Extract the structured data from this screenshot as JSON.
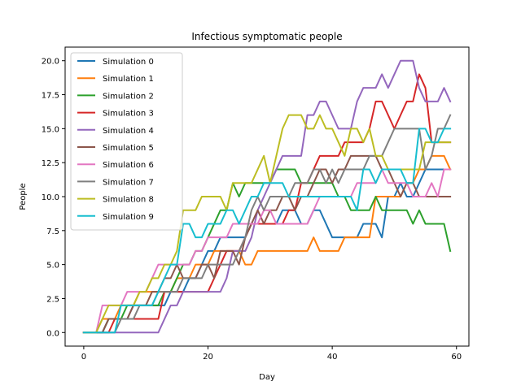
{
  "chart_data": {
    "type": "line",
    "title": "Infectious symptomatic people",
    "xlabel": "Day",
    "ylabel": "People",
    "xlim": [
      -3,
      62
    ],
    "ylim": [
      -1,
      21
    ],
    "xticks": [
      0,
      20,
      40,
      60
    ],
    "xtick_labels": [
      "0",
      "20",
      "40",
      "60"
    ],
    "yticks": [
      0,
      2.5,
      5,
      7.5,
      10,
      12.5,
      15,
      17.5,
      20
    ],
    "ytick_labels": [
      "0.0",
      "2.5",
      "5.0",
      "7.5",
      "10.0",
      "12.5",
      "15.0",
      "17.5",
      "20.0"
    ],
    "grid": false,
    "legend_position": "upper-left",
    "x": [
      0,
      1,
      2,
      3,
      4,
      5,
      6,
      7,
      8,
      9,
      10,
      11,
      12,
      13,
      14,
      15,
      16,
      17,
      18,
      19,
      20,
      21,
      22,
      23,
      24,
      25,
      26,
      27,
      28,
      29,
      30,
      31,
      32,
      33,
      34,
      35,
      36,
      37,
      38,
      39,
      40,
      41,
      42,
      43,
      44,
      45,
      46,
      47,
      48,
      49,
      50,
      51,
      52,
      53,
      54,
      55,
      56,
      57,
      58,
      59
    ],
    "series": [
      {
        "name": "Simulation 0",
        "color": "#1f77b4",
        "values": [
          0,
          0,
          0,
          0,
          1,
          1,
          1,
          1,
          2,
          2,
          2,
          2,
          2,
          2,
          3,
          3,
          3,
          4,
          4,
          5,
          6,
          6,
          7,
          7,
          7,
          7,
          7,
          8,
          8,
          8,
          8,
          8,
          9,
          9,
          9,
          8,
          8,
          9,
          9,
          8,
          7,
          7,
          7,
          7,
          7,
          8,
          8,
          8,
          7,
          10,
          10,
          11,
          10,
          10,
          11,
          12,
          12,
          12,
          12,
          12
        ]
      },
      {
        "name": "Simulation 1",
        "color": "#ff7f0e",
        "values": [
          0,
          0,
          0,
          1,
          1,
          1,
          2,
          2,
          2,
          3,
          3,
          3,
          3,
          3,
          3,
          4,
          4,
          4,
          5,
          5,
          5,
          6,
          6,
          6,
          6,
          6,
          5,
          5,
          6,
          6,
          6,
          6,
          6,
          6,
          6,
          6,
          6,
          7,
          6,
          6,
          6,
          6,
          7,
          7,
          7,
          7,
          7,
          10,
          10,
          10,
          10,
          10,
          11,
          11,
          12,
          12,
          13,
          13,
          13,
          12
        ]
      },
      {
        "name": "Simulation 2",
        "color": "#2ca02c",
        "values": [
          0,
          0,
          0,
          0,
          1,
          1,
          1,
          2,
          2,
          2,
          2,
          2,
          2,
          3,
          3,
          4,
          5,
          5,
          6,
          6,
          7,
          8,
          9,
          9,
          11,
          10,
          11,
          11,
          11,
          11,
          11,
          12,
          12,
          12,
          12,
          11,
          11,
          11,
          11,
          11,
          11,
          10,
          10,
          9,
          9,
          9,
          9,
          10,
          9,
          9,
          9,
          9,
          9,
          8,
          9,
          8,
          8,
          8,
          8,
          6
        ]
      },
      {
        "name": "Simulation 3",
        "color": "#d62728",
        "values": [
          0,
          0,
          0,
          0,
          0,
          1,
          1,
          1,
          1,
          1,
          1,
          1,
          1,
          3,
          3,
          3,
          3,
          3,
          3,
          3,
          3,
          4,
          5,
          6,
          6,
          6,
          7,
          8,
          8,
          8,
          8,
          8,
          8,
          9,
          9,
          11,
          11,
          12,
          13,
          13,
          13,
          13,
          14,
          14,
          14,
          14,
          15,
          17,
          17,
          16,
          15,
          16,
          17,
          17,
          19,
          18,
          14,
          14,
          14,
          14
        ]
      },
      {
        "name": "Simulation 4",
        "color": "#9467bd",
        "values": [
          0,
          0,
          0,
          0,
          0,
          0,
          0,
          0,
          0,
          0,
          0,
          0,
          0,
          1,
          2,
          2,
          3,
          3,
          3,
          3,
          3,
          3,
          3,
          4,
          6,
          6,
          6,
          7,
          9,
          10,
          11,
          12,
          13,
          13,
          13,
          13,
          16,
          16,
          17,
          17,
          16,
          15,
          15,
          15,
          17,
          18,
          18,
          18,
          19,
          18,
          19,
          20,
          20,
          20,
          18,
          17,
          17,
          17,
          18,
          17
        ]
      },
      {
        "name": "Simulation 5",
        "color": "#8c564b",
        "values": [
          0,
          0,
          0,
          0,
          1,
          1,
          1,
          1,
          2,
          2,
          2,
          3,
          3,
          4,
          4,
          5,
          4,
          4,
          4,
          5,
          5,
          4,
          6,
          6,
          6,
          5,
          7,
          8,
          9,
          8,
          9,
          9,
          10,
          10,
          9,
          10,
          10,
          11,
          12,
          12,
          11,
          12,
          12,
          13,
          13,
          13,
          13,
          13,
          12,
          12,
          11,
          10,
          11,
          11,
          10,
          10,
          10,
          10,
          10,
          10
        ]
      },
      {
        "name": "Simulation 6",
        "color": "#e377c2",
        "values": [
          0,
          0,
          0,
          2,
          2,
          2,
          2,
          3,
          3,
          3,
          3,
          4,
          5,
          5,
          5,
          5,
          5,
          5,
          6,
          6,
          7,
          7,
          7,
          7,
          8,
          8,
          8,
          8,
          8,
          9,
          9,
          8,
          8,
          8,
          8,
          8,
          8,
          9,
          10,
          10,
          10,
          10,
          10,
          10,
          11,
          11,
          11,
          11,
          12,
          11,
          11,
          11,
          11,
          10,
          10,
          10,
          11,
          10,
          12,
          12
        ]
      },
      {
        "name": "Simulation 7",
        "color": "#7f7f7f",
        "values": [
          0,
          0,
          0,
          0,
          0,
          0,
          1,
          1,
          1,
          2,
          2,
          2,
          3,
          3,
          3,
          3,
          4,
          4,
          4,
          4,
          5,
          5,
          5,
          5,
          5,
          6,
          7,
          9,
          10,
          9,
          10,
          10,
          10,
          10,
          11,
          11,
          11,
          12,
          12,
          11,
          12,
          11,
          12,
          12,
          12,
          12,
          13,
          13,
          13,
          14,
          15,
          15,
          15,
          15,
          15,
          12,
          13,
          15,
          15,
          16
        ]
      },
      {
        "name": "Simulation 8",
        "color": "#bcbd22",
        "values": [
          0,
          0,
          0,
          1,
          2,
          2,
          2,
          2,
          2,
          3,
          3,
          4,
          4,
          5,
          5,
          6,
          9,
          9,
          9,
          10,
          10,
          10,
          10,
          9,
          11,
          11,
          11,
          11,
          12,
          13,
          11,
          13,
          15,
          16,
          16,
          16,
          15,
          15,
          16,
          15,
          15,
          14,
          13,
          15,
          15,
          14,
          15,
          13,
          13,
          12,
          12,
          12,
          12,
          12,
          12,
          14,
          14,
          14,
          14,
          14
        ]
      },
      {
        "name": "Simulation 9",
        "color": "#17becf",
        "values": [
          0,
          0,
          0,
          0,
          0,
          0,
          2,
          2,
          2,
          2,
          2,
          2,
          3,
          4,
          5,
          5,
          8,
          8,
          7,
          7,
          8,
          8,
          8,
          9,
          9,
          8,
          9,
          10,
          10,
          11,
          11,
          11,
          11,
          10,
          10,
          10,
          10,
          10,
          10,
          10,
          10,
          10,
          10,
          10,
          9,
          12,
          12,
          11,
          12,
          12,
          12,
          12,
          11,
          11,
          15,
          15,
          14,
          14,
          15,
          15
        ]
      }
    ]
  }
}
